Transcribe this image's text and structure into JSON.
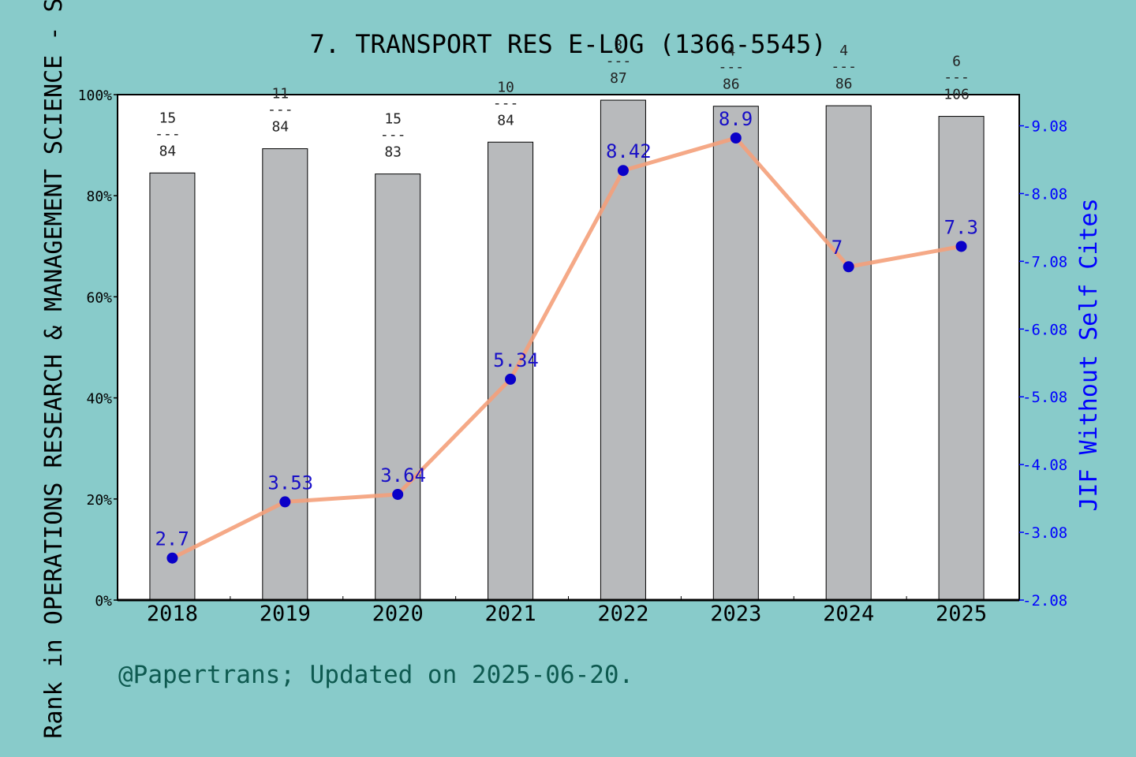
{
  "chart_data": {
    "type": "bar",
    "title": "7. TRANSPORT RES E-LOG (1366-5545)",
    "ylabel_left": "Rank in OPERATIONS RESEARCH & MANAGEMENT SCIENCE - SCIE",
    "ylabel_right": "JIF Without Self Cites",
    "footnote": "@Papertrans; Updated on 2025-06-20.",
    "categories": [
      "2018",
      "2019",
      "2020",
      "2021",
      "2022",
      "2023",
      "2024",
      "2025"
    ],
    "left_axis": {
      "ylim": [
        0,
        100
      ],
      "ticks": [
        0,
        20,
        40,
        60,
        80,
        100
      ],
      "tick_labels": [
        "0%",
        "20%",
        "40%",
        "60%",
        "80%",
        "100%"
      ]
    },
    "right_axis": {
      "ylim": [
        2.08,
        9.54
      ],
      "ticks": [
        2.08,
        3.08,
        4.08,
        5.08,
        6.08,
        7.08,
        8.08,
        9.08
      ],
      "tick_labels": [
        "2.08",
        "3.08",
        "4.08",
        "5.08",
        "6.08",
        "7.08",
        "8.08",
        "9.08"
      ]
    },
    "series": [
      {
        "type": "bar",
        "axis": "left",
        "color": "#b8babc",
        "values": [
          84.5,
          89.3,
          84.3,
          90.6,
          98.9,
          97.7,
          97.8,
          95.7
        ],
        "rank_labels": [
          {
            "rank": "15",
            "total": "84"
          },
          {
            "rank": "11",
            "total": "84"
          },
          {
            "rank": "15",
            "total": "83"
          },
          {
            "rank": "10",
            "total": "84"
          },
          {
            "rank": "3",
            "total": "87"
          },
          {
            "rank": "4",
            "total": "86"
          },
          {
            "rank": "4",
            "total": "86"
          },
          {
            "rank": "6",
            "total": "106"
          }
        ],
        "divider": "---"
      },
      {
        "type": "line",
        "axis": "right",
        "color": "#f4a07a",
        "marker_color": "#0a00c8",
        "values": [
          2.7,
          3.53,
          3.64,
          5.34,
          8.42,
          8.9,
          7.0,
          7.3
        ],
        "value_labels": [
          "2.7",
          "3.53",
          "3.64",
          "5.34",
          "8.42",
          "8.9",
          "7",
          "7.3"
        ]
      }
    ]
  }
}
